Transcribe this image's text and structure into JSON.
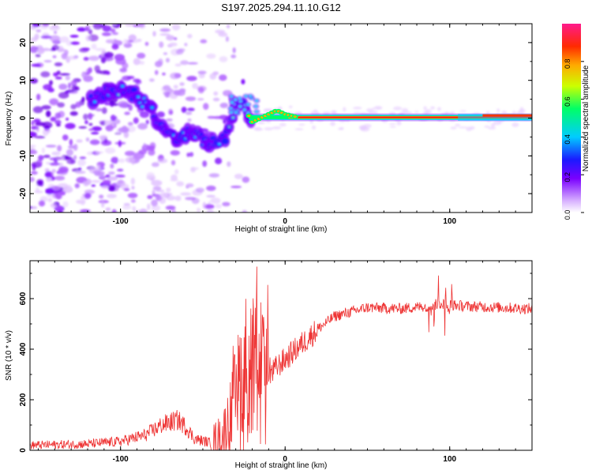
{
  "title": "S197.2025.294.11.10.G12",
  "chart_data": [
    {
      "type": "heatmap",
      "name": "spectrogram",
      "xlabel": "Height of straight line (km)",
      "ylabel": "Frequency (Hz)",
      "xlim": [
        -155,
        150
      ],
      "ylim": [
        -25,
        25
      ],
      "xticks": [
        -100,
        0,
        100
      ],
      "yticks": [
        -20,
        -10,
        0,
        10,
        20
      ],
      "colorbar": {
        "label": "Normalized spectral amplitude",
        "range": [
          0,
          1
        ],
        "ticks": [
          0.0,
          0.2,
          0.4,
          0.6,
          0.8
        ]
      },
      "ridge": {
        "description": "frequency of the dominant spectral line vs height",
        "x": [
          -115,
          -105,
          -95,
          -88,
          -80,
          -72,
          -65,
          -58,
          -50,
          -42,
          -36,
          -30,
          -25,
          -20,
          -10,
          -5,
          0,
          10,
          30,
          60,
          90,
          110,
          150
        ],
        "y": [
          5,
          8,
          7,
          5,
          1,
          -3,
          -6,
          -3,
          -6,
          -7,
          -5,
          4,
          3,
          -1,
          1,
          2,
          1,
          0,
          0,
          0,
          0,
          0.5,
          0.5
        ]
      }
    },
    {
      "type": "line",
      "name": "snr",
      "xlabel": "Height of straight line (km)",
      "ylabel": "SNR (10 * v/v)",
      "xlim": [
        -155,
        150
      ],
      "ylim": [
        0,
        750
      ],
      "xticks": [
        -100,
        0,
        100
      ],
      "yticks": [
        0,
        200,
        400,
        600
      ],
      "color": "#ee3333",
      "envelope": {
        "x": [
          -155,
          -120,
          -100,
          -85,
          -75,
          -65,
          -60,
          -55,
          -45,
          -38,
          -32,
          -28,
          -25,
          -20,
          -15,
          -10,
          -5,
          0,
          10,
          20,
          30,
          50,
          70,
          85,
          95,
          100,
          110,
          130,
          150
        ],
        "y": [
          20,
          25,
          35,
          60,
          100,
          120,
          90,
          45,
          30,
          60,
          150,
          250,
          320,
          310,
          280,
          290,
          330,
          360,
          420,
          480,
          530,
          565,
          560,
          570,
          580,
          575,
          570,
          565,
          560
        ]
      }
    }
  ]
}
